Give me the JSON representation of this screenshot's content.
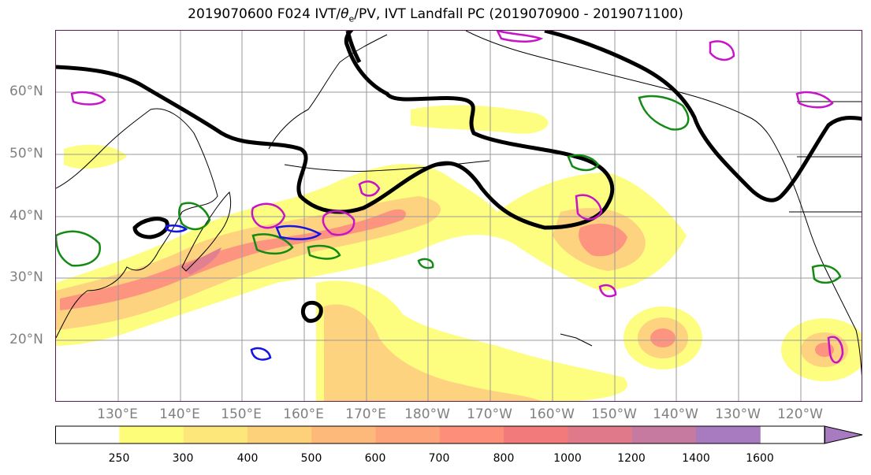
{
  "title": "2019070600 F024 IVT/θe/PV, IVT Landfall PC (2019070900 - 2019071100)",
  "title_parts": {
    "prefix": "2019070600 F024 IVT/",
    "theta": "θ",
    "sub": "e",
    "suffix": "/PV, IVT Landfall PC (2019070900 - 2019071100)"
  },
  "lat_labels": [
    "60°N",
    "50°N",
    "40°N",
    "30°N",
    "20°N"
  ],
  "lon_labels": [
    "130°E",
    "140°E",
    "150°E",
    "160°E",
    "170°E",
    "180°W",
    "170°W",
    "160°W",
    "150°W",
    "140°W",
    "130°W",
    "120°W"
  ],
  "colorbar": {
    "ticks": [
      "250",
      "300",
      "400",
      "500",
      "600",
      "700",
      "800",
      "1000",
      "1200",
      "1400",
      "1600"
    ],
    "colors": [
      "#ffffff",
      "#fdfd7a",
      "#fde67a",
      "#fdd17a",
      "#fdb97a",
      "#fda47a",
      "#fd8f7a",
      "#f37a7a",
      "#e07a8a",
      "#c67aa0",
      "#a87ac0"
    ]
  },
  "legend_colors": {
    "pv_contour": "#000000",
    "landfall_pc_green": "#138a13",
    "landfall_pc_blue": "#1414e6",
    "landfall_pc_magenta": "#c814c8"
  }
}
